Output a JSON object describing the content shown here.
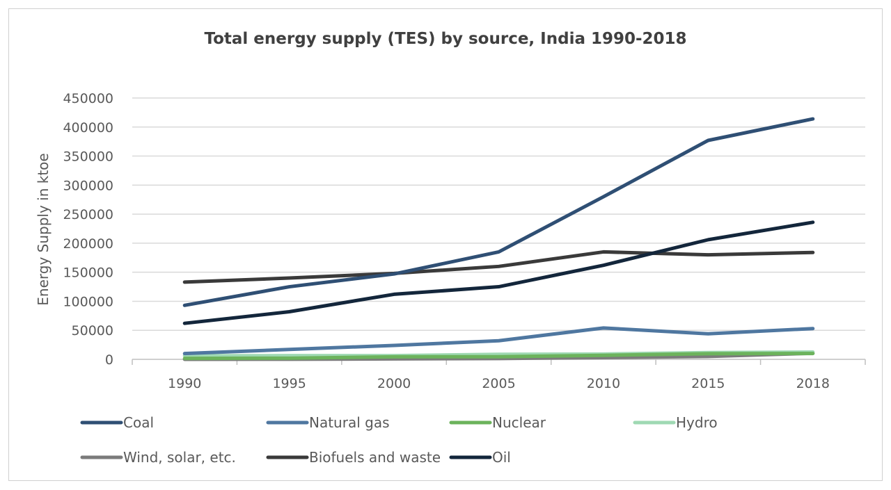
{
  "chart_data": {
    "type": "line",
    "title": "Total energy supply (TES) by source, India 1990-2018",
    "xlabel": "",
    "ylabel": "Energy Supply in ktoe",
    "categories": [
      "1990",
      "1995",
      "2000",
      "2005",
      "2010",
      "2015",
      "2018"
    ],
    "ylim": [
      0,
      450000
    ],
    "yticks": [
      "0",
      "50000",
      "100000",
      "150000",
      "200000",
      "250000",
      "300000",
      "350000",
      "400000",
      "450000"
    ],
    "grid": true,
    "legend": "bottom",
    "series": [
      {
        "name": "Coal",
        "color": "#2f4f74",
        "values": [
          93000,
          125000,
          147000,
          185000,
          280000,
          377000,
          414000
        ]
      },
      {
        "name": "Natural gas",
        "color": "#4f77a0",
        "values": [
          10000,
          17000,
          24000,
          32000,
          54000,
          44000,
          53000
        ]
      },
      {
        "name": "Nuclear",
        "color": "#6cb35c",
        "values": [
          1600,
          2000,
          4400,
          4500,
          6900,
          9700,
          10000
        ]
      },
      {
        "name": "Hydro",
        "color": "#9fd9b3",
        "values": [
          6200,
          6400,
          6400,
          8700,
          9200,
          11700,
          12500
        ]
      },
      {
        "name": "Wind, solar, etc.",
        "color": "#7b7b7b",
        "values": [
          0,
          200,
          700,
          1400,
          3000,
          5000,
          10500
        ]
      },
      {
        "name": "Biofuels and waste",
        "color": "#3a3a3a",
        "values": [
          133000,
          140000,
          148000,
          160000,
          185000,
          180000,
          184000
        ]
      },
      {
        "name": "Oil",
        "color": "#13263b",
        "values": [
          62000,
          82000,
          112000,
          125000,
          162000,
          206000,
          236000
        ]
      }
    ]
  }
}
